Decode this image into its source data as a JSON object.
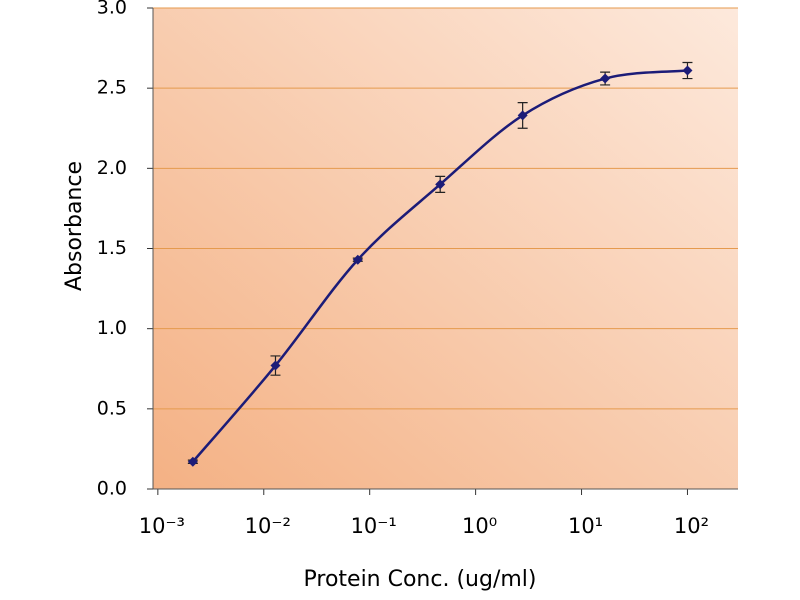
{
  "chart_data": {
    "type": "line",
    "x_label": "Protein Conc. (ug/ml)",
    "y_label": "Absorbance",
    "x_scale": "log",
    "x": [
      0.00214,
      0.0129,
      0.0772,
      0.463,
      2.78,
      16.7,
      100
    ],
    "series": [
      {
        "color": "#1c1c78",
        "values": [
          0.17,
          0.77,
          1.43,
          1.9,
          2.33,
          2.56,
          2.61
        ],
        "errors": [
          0.01,
          0.06,
          0.01,
          0.05,
          0.08,
          0.04,
          0.05
        ]
      }
    ],
    "xlim": [
      0.0009,
      300
    ],
    "xticks": [
      {
        "value": 0.001,
        "label": "10⁻³"
      },
      {
        "value": 0.01,
        "label": "10⁻²"
      },
      {
        "value": 0.1,
        "label": "10⁻¹"
      },
      {
        "value": 1,
        "label": "10⁰"
      },
      {
        "value": 10,
        "label": "10¹"
      },
      {
        "value": 100,
        "label": "10²"
      }
    ],
    "ylim": [
      0,
      3
    ],
    "yticks": [
      {
        "value": 0,
        "label": "0.0"
      },
      0.5,
      {
        "value": 1,
        "label": "1.0"
      },
      1.5,
      {
        "value": 2,
        "label": "2.0"
      },
      2.5,
      {
        "value": 3,
        "label": "3.0"
      }
    ],
    "grid": true,
    "grid_color": "#e59a4e"
  }
}
